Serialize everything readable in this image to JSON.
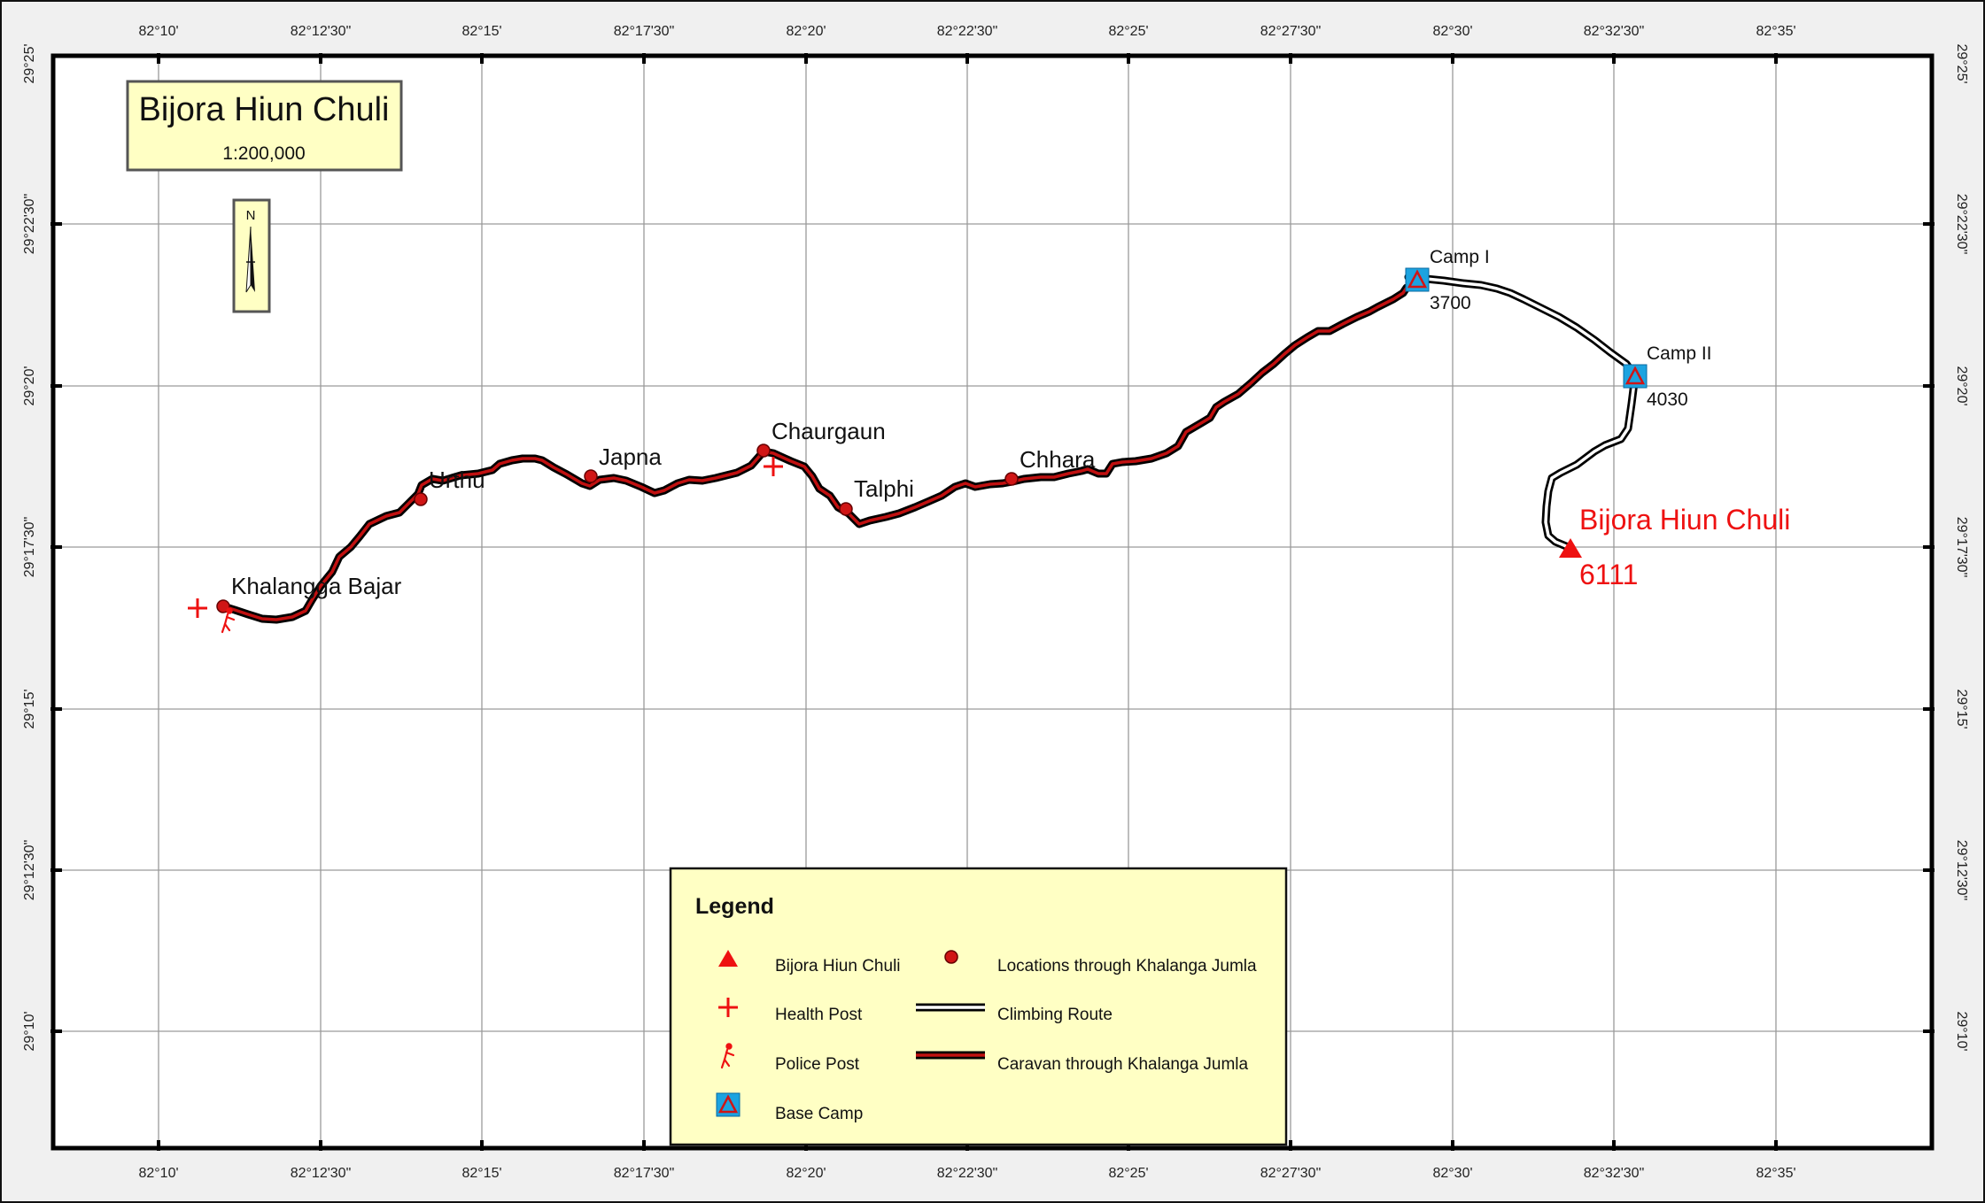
{
  "title": "Bijora Hiun Chuli",
  "scale": "1:200,000",
  "north": "N",
  "lon_ticks": [
    "82°10'",
    "82°12'30\"",
    "82°15'",
    "82°17'30\"",
    "82°20'",
    "82°22'30\"",
    "82°25'",
    "82°27'30\"",
    "82°30'",
    "82°32'30\"",
    "82°35'"
  ],
  "lat_ticks": [
    "29°25'",
    "29°22'30\"",
    "29°20'",
    "29°17'30\"",
    "29°15'",
    "29°12'30\"",
    "29°10'"
  ],
  "places": {
    "khalangga": "Khalangga Bajar",
    "urthu": "Urthu",
    "japna": "Japna",
    "chaurgaun": "Chaurgaun",
    "talphi": "Talphi",
    "chhara": "Chhara"
  },
  "camps": {
    "camp1": {
      "name": "Camp I",
      "alt": "3700"
    },
    "camp2": {
      "name": "Camp II",
      "alt": "4030"
    }
  },
  "peak": {
    "name": "Bijora Hiun Chuli",
    "alt": "6111"
  },
  "legend": {
    "title": "Legend",
    "peak": "Bijora Hiun Chuli",
    "health": "Health Post",
    "police": "Police Post",
    "basecamp": "Base Camp",
    "locations": "Locations through Khalanga Jumla",
    "climbing": "Climbing Route",
    "caravan": "Caravan through Khalanga Jumla"
  },
  "colors": {
    "frame_bg": "#f0f0f0",
    "grid": "#9a9a9a",
    "route_red": "#c01010",
    "peak_red": "#ee1111",
    "camp_blue": "#1ca3e0",
    "panel_yellow": "#ffffc4"
  }
}
